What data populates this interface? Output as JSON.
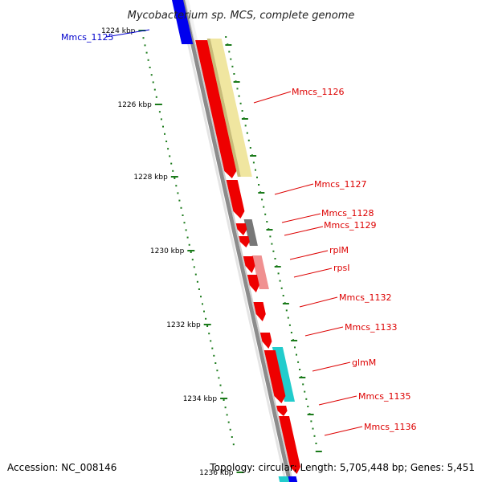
{
  "map": {
    "title": "Mycobacterium sp. MCS, complete genome",
    "accession": "Accession: NC_008146",
    "summary": "Topology: circular; Length: 5,705,448 bp; Genes: 5,451"
  },
  "colors": {
    "backbone": "#8c8c8c",
    "tick": "#1a7a1a",
    "red_gene": "#ee0000",
    "red_label": "#dd0000",
    "blue_gene": "#0000ee",
    "blue_label": "#0000cc",
    "tan_feature": "#f0e6a0",
    "grey_feature": "#777777",
    "pink_feature": "#f09090",
    "cyan_feature": "#22cccc"
  },
  "kbp_labels": [
    "1224 kbp",
    "1226 kbp",
    "1228 kbp",
    "1230 kbp",
    "1232 kbp",
    "1234 kbp",
    "1236 kbp"
  ],
  "gene_labels": [
    {
      "text": "Mmcs_1125",
      "color": "blue"
    },
    {
      "text": "Mmcs_1126",
      "color": "red"
    },
    {
      "text": "Mmcs_1127",
      "color": "red"
    },
    {
      "text": "Mmcs_1128",
      "color": "red"
    },
    {
      "text": "Mmcs_1129",
      "color": "red"
    },
    {
      "text": "rplM",
      "color": "red"
    },
    {
      "text": "rpsI",
      "color": "red"
    },
    {
      "text": "Mmcs_1132",
      "color": "red"
    },
    {
      "text": "Mmcs_1133",
      "color": "red"
    },
    {
      "text": "glmM",
      "color": "red"
    },
    {
      "text": "Mmcs_1135",
      "color": "red"
    },
    {
      "text": "Mmcs_1136",
      "color": "red"
    }
  ]
}
